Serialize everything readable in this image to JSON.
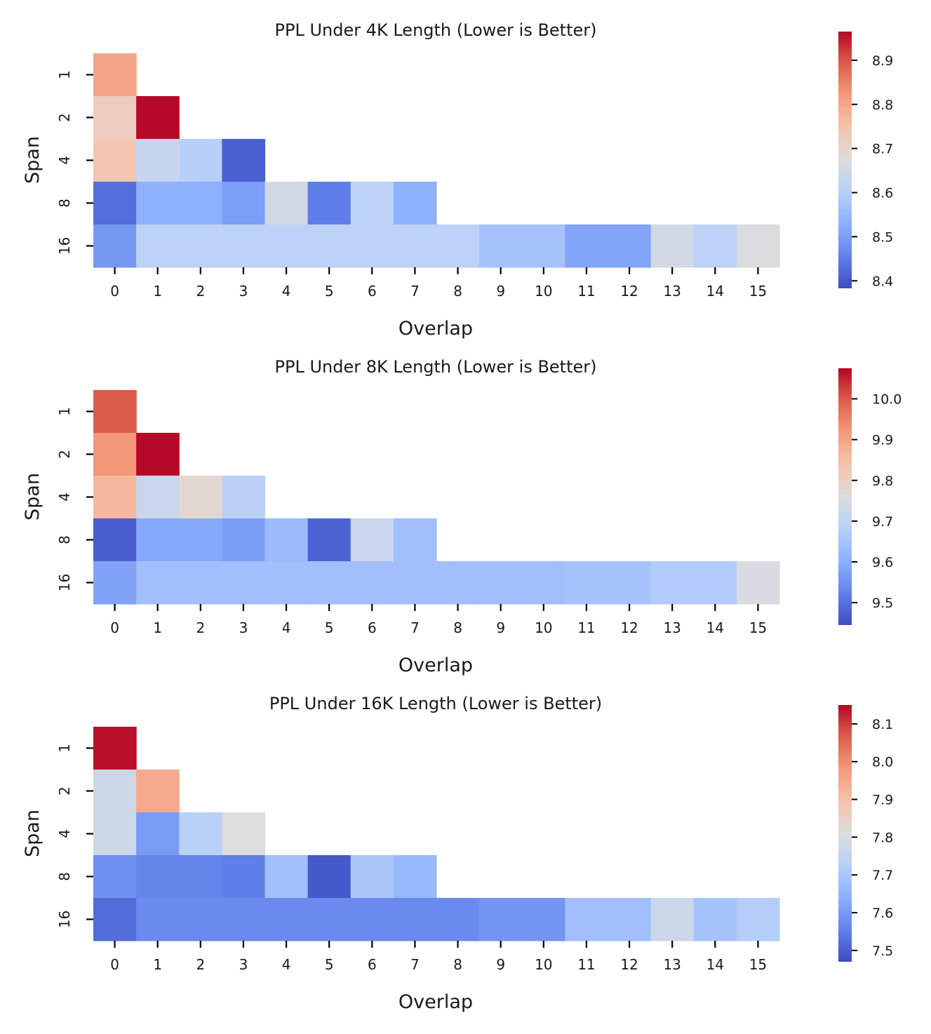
{
  "chart_data": [
    {
      "type": "heatmap",
      "title": "PPL Under 4K Length (Lower is Better)",
      "xlabel": "Overlap",
      "ylabel": "Span",
      "x_categories": [
        "0",
        "1",
        "2",
        "3",
        "4",
        "5",
        "6",
        "7",
        "8",
        "9",
        "10",
        "11",
        "12",
        "13",
        "14",
        "15"
      ],
      "y_categories": [
        "1",
        "2",
        "4",
        "8",
        "16"
      ],
      "values": [
        [
          8.8
        ],
        [
          8.72,
          8.96
        ],
        [
          8.74,
          8.63,
          8.6,
          8.41
        ],
        [
          8.43,
          8.53,
          8.53,
          8.5,
          8.65,
          8.45,
          8.61,
          8.53
        ],
        [
          8.49,
          8.61,
          8.61,
          8.61,
          8.61,
          8.61,
          8.61,
          8.61,
          8.61,
          8.57,
          8.57,
          8.51,
          8.51,
          8.65,
          8.61,
          8.67
        ]
      ],
      "colorbar_range": [
        8.383,
        8.965
      ],
      "colorbar_ticks": [
        "8.4",
        "8.5",
        "8.6",
        "8.7",
        "8.8",
        "8.9"
      ],
      "colormap": "coolwarm"
    },
    {
      "type": "heatmap",
      "title": "PPL Under 8K Length (Lower is Better)",
      "xlabel": "Overlap",
      "ylabel": "Span",
      "x_categories": [
        "0",
        "1",
        "2",
        "3",
        "4",
        "5",
        "6",
        "7",
        "8",
        "9",
        "10",
        "11",
        "12",
        "13",
        "14",
        "15"
      ],
      "y_categories": [
        "1",
        "2",
        "4",
        "8",
        "16"
      ],
      "values": [
        [
          10.0
        ],
        [
          9.92,
          10.07
        ],
        [
          9.86,
          9.72,
          9.78,
          9.69
        ],
        [
          9.47,
          9.59,
          9.59,
          9.57,
          9.63,
          9.48,
          9.72,
          9.64
        ],
        [
          9.58,
          9.64,
          9.64,
          9.64,
          9.64,
          9.64,
          9.64,
          9.64,
          9.64,
          9.64,
          9.64,
          9.65,
          9.65,
          9.67,
          9.67,
          9.75
        ]
      ],
      "colorbar_range": [
        9.445,
        10.075
      ],
      "colorbar_ticks": [
        "9.5",
        "9.6",
        "9.7",
        "9.8",
        "9.9",
        "10.0"
      ],
      "colormap": "coolwarm"
    },
    {
      "type": "heatmap",
      "title": "PPL Under 16K Length (Lower is Better)",
      "xlabel": "Overlap",
      "ylabel": "Span",
      "x_categories": [
        "0",
        "1",
        "2",
        "3",
        "4",
        "5",
        "6",
        "7",
        "8",
        "9",
        "10",
        "11",
        "12",
        "13",
        "14",
        "15"
      ],
      "y_categories": [
        "1",
        "2",
        "4",
        "8",
        "16"
      ],
      "values": [
        [
          8.14
        ],
        [
          7.77,
          7.95
        ],
        [
          7.77,
          7.6,
          7.73,
          7.81
        ],
        [
          7.58,
          7.56,
          7.56,
          7.55,
          7.68,
          7.49,
          7.7,
          7.66
        ],
        [
          7.52,
          7.57,
          7.57,
          7.57,
          7.57,
          7.57,
          7.57,
          7.57,
          7.57,
          7.59,
          7.59,
          7.68,
          7.68,
          7.77,
          7.69,
          7.72
        ]
      ],
      "colorbar_range": [
        7.47,
        8.15
      ],
      "colorbar_ticks": [
        "7.5",
        "7.6",
        "7.7",
        "7.8",
        "7.9",
        "8.0",
        "8.1"
      ],
      "colormap": "coolwarm"
    }
  ]
}
